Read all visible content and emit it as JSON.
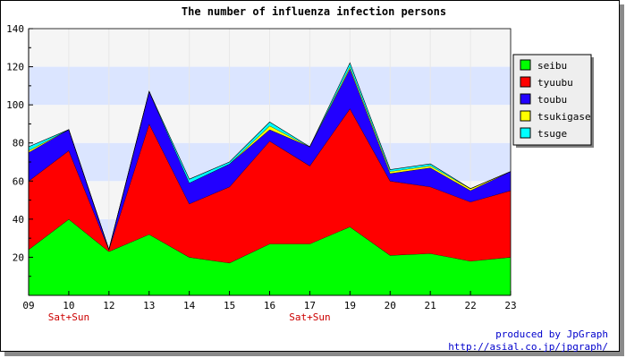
{
  "chart_data": {
    "type": "area",
    "stacked": true,
    "title": "The number of influenza infection persons",
    "xlabel": "",
    "ylabel": "",
    "categories": [
      "09",
      "10",
      "12",
      "13",
      "14",
      "15",
      "16",
      "17",
      "19",
      "20",
      "21",
      "22",
      "23"
    ],
    "category_notes": [
      {
        "category": "10",
        "text": "Sat+Sun"
      },
      {
        "category": "17",
        "text": "Sat+Sun"
      }
    ],
    "ylim": [
      0,
      140
    ],
    "yticks": [
      20,
      40,
      60,
      80,
      100,
      120,
      140
    ],
    "grid": true,
    "band_colors": [
      "#f5f5f5",
      "#dbe5ff"
    ],
    "legend_position": "right",
    "series": [
      {
        "name": "seibu",
        "color": "#00ff00",
        "values": [
          24,
          40,
          23,
          32,
          20,
          17,
          27,
          27,
          36,
          21,
          22,
          18,
          20
        ]
      },
      {
        "name": "tyuubu",
        "color": "#ff0000",
        "values": [
          36,
          36,
          1,
          58,
          28,
          40,
          54,
          41,
          62,
          39,
          35,
          31,
          35
        ]
      },
      {
        "name": "toubu",
        "color": "#2200ff",
        "values": [
          15,
          11,
          0,
          17,
          11,
          12,
          6,
          10,
          21,
          4,
          10,
          6,
          10
        ]
      },
      {
        "name": "tsukigase",
        "color": "#ffff00",
        "values": [
          1,
          0,
          0,
          0,
          0,
          0,
          2,
          0,
          1,
          1,
          1,
          1,
          0
        ]
      },
      {
        "name": "tsuge",
        "color": "#00ffff",
        "values": [
          2,
          0,
          0,
          0,
          2,
          1,
          2,
          0,
          2,
          1,
          1,
          0,
          0
        ]
      }
    ]
  },
  "footer": {
    "credit_line1": "produced by JpGraph",
    "credit_line2": "http://asial.co.jp/jpgraph/"
  }
}
